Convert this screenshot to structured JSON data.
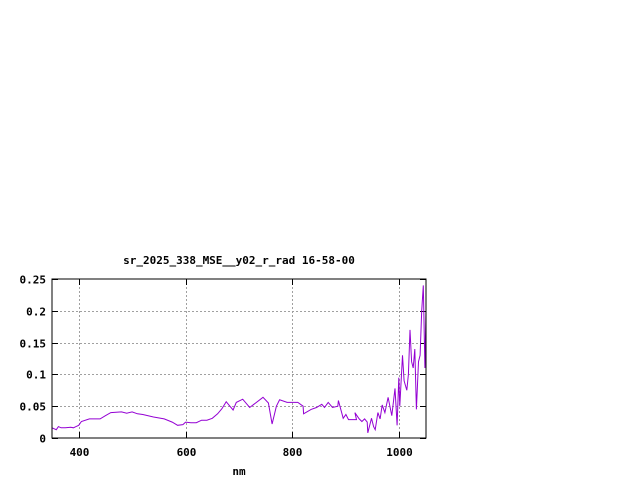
{
  "chart_data": {
    "type": "line",
    "title": "sr_2025_338_MSE__y02_r_rad 16-58-00",
    "xlabel": "nm",
    "ylabel": "",
    "xlim": [
      350,
      1050
    ],
    "ylim": [
      0,
      0.25
    ],
    "grid": true,
    "x_ticks": [
      400,
      600,
      800,
      1000
    ],
    "x_tick_labels": [
      "400",
      "600",
      "800",
      "1000"
    ],
    "y_ticks": [
      0,
      0.05,
      0.1,
      0.15,
      0.2,
      0.25
    ],
    "y_tick_labels": [
      "0",
      "0.05",
      "0.1",
      "0.15",
      "0.2",
      "0.25"
    ],
    "line_color": "#9400d3",
    "series": [
      {
        "x": [
          350,
          358,
          362,
          367,
          375,
          385,
          390,
          395,
          400,
          405,
          420,
          440,
          450,
          460,
          480,
          490,
          500,
          510,
          520,
          540,
          560,
          575,
          585,
          595,
          600,
          610,
          620,
          630,
          640,
          650,
          660,
          668,
          676,
          683,
          689,
          695,
          707,
          720,
          745,
          755,
          762,
          770,
          776,
          790,
          810,
          820,
          821,
          835,
          845,
          855,
          860,
          867,
          875,
          885,
          886,
          895,
          900,
          905,
          910,
          920,
          917,
          925,
          930,
          935,
          940,
          941,
          948,
          952,
          955,
          960,
          964,
          968,
          973,
          979,
          986,
          992,
          996,
          999,
          1001,
          1006,
          1009,
          1014,
          1017,
          1020,
          1023,
          1026,
          1029,
          1032,
          1036,
          1039,
          1042,
          1045,
          1048,
          1050
        ],
        "y": [
          0.016,
          0.013,
          0.018,
          0.016,
          0.016,
          0.017,
          0.016,
          0.018,
          0.02,
          0.026,
          0.03,
          0.03,
          0.035,
          0.04,
          0.041,
          0.039,
          0.041,
          0.038,
          0.037,
          0.033,
          0.03,
          0.025,
          0.02,
          0.021,
          0.025,
          0.024,
          0.024,
          0.028,
          0.028,
          0.031,
          0.038,
          0.046,
          0.057,
          0.05,
          0.044,
          0.056,
          0.061,
          0.048,
          0.064,
          0.055,
          0.022,
          0.05,
          0.06,
          0.056,
          0.056,
          0.05,
          0.038,
          0.045,
          0.048,
          0.053,
          0.048,
          0.056,
          0.048,
          0.05,
          0.059,
          0.031,
          0.037,
          0.029,
          0.029,
          0.029,
          0.04,
          0.03,
          0.026,
          0.03,
          0.025,
          0.008,
          0.031,
          0.018,
          0.013,
          0.04,
          0.03,
          0.052,
          0.04,
          0.064,
          0.035,
          0.078,
          0.02,
          0.095,
          0.05,
          0.13,
          0.09,
          0.075,
          0.1,
          0.17,
          0.12,
          0.11,
          0.14,
          0.045,
          0.12,
          0.13,
          0.2,
          0.24,
          0.11,
          0.2
        ]
      }
    ]
  }
}
